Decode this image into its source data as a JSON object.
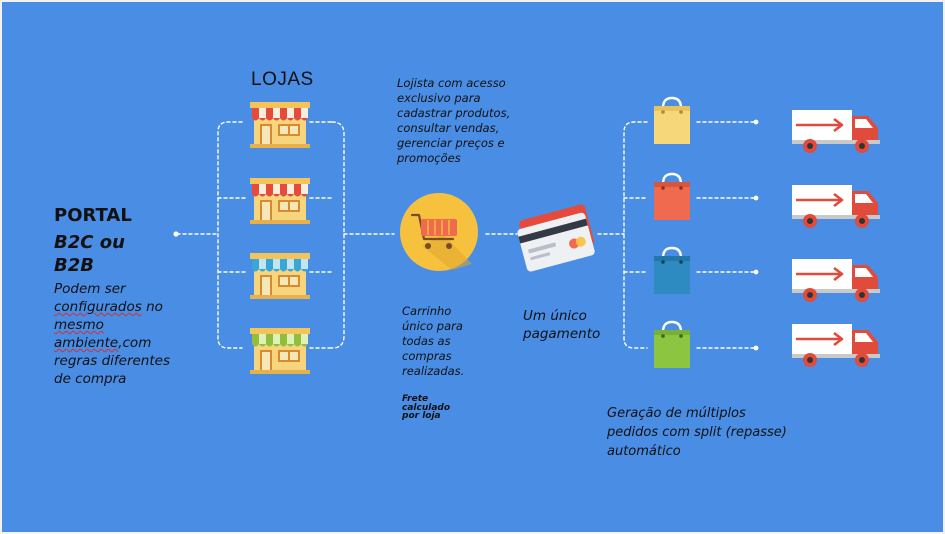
{
  "portal": {
    "title": "PORTAL",
    "subtitle": "B2C ou B2B",
    "desc_before": "Podem ser ",
    "desc_link1": "configurados",
    "desc_mid": " no ",
    "desc_link2": "mesmo ambiente",
    "desc_after": ",com regras diferentes de compra"
  },
  "stores": {
    "title": "LOJAS",
    "awning_colors": [
      "#e44b3a",
      "#e44b3a",
      "#3aa6d8",
      "#8fbf3c"
    ]
  },
  "lojista_text": "Lojista com acesso exclusivo para cadastrar produtos, consultar vendas, gerenciar preços e promoções",
  "cart": {
    "label": "Carrinho único para todas as compras realizadas.",
    "frete": "Frete calculado por loja"
  },
  "payment": {
    "label": "Um único pagamento"
  },
  "orders": {
    "label": "Geração de múltiplos pedidos  com split (repasse) automático",
    "bag_colors": [
      "#f6d77a",
      "#ef6a4f",
      "#2e8bc2",
      "#8cc640"
    ]
  },
  "colors": {
    "background": "#4a8de5",
    "connector": "#ffffff",
    "truck_red": "#e14b3b"
  }
}
